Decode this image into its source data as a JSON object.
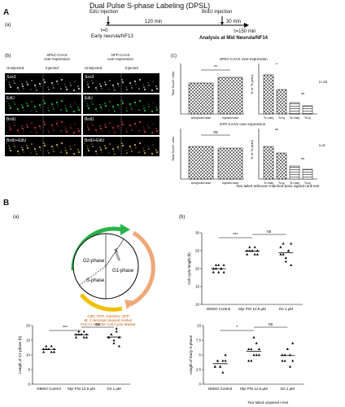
{
  "panel_A": {
    "letter": "A",
    "title": "Dual Pulse S-phase Labeling (DPSL)",
    "sub": "(a)",
    "edu": "EdU injection",
    "brdu": "BrdU injection",
    "t0": "t=0",
    "early": "Early neurula/NF13",
    "gap": "120 min",
    "d30": "30 min",
    "t150": "t=150 min",
    "analysis": "Analysis at Mid Neurula/NF14"
  },
  "panel_b": {
    "sub": "(b)",
    "left_header": "aPKC-CAAX\nover-expression",
    "right_header": "GFP-CAAX\nover-expression",
    "uninjected": "Uninjected",
    "injected": "Injected",
    "rows": [
      "Sox3",
      "EdU",
      "BrdU",
      "BrdU+EdU"
    ]
  },
  "panel_c": {
    "sub": "(c)",
    "top_title": "aPKC-CAAX over-expression",
    "bottom_title": "GFP-CAAX over-expression",
    "xcats": [
      "Uninjected side",
      "Injected side"
    ],
    "sig_ns": "ns",
    "sig_star": "**",
    "n_top": "n=15",
    "n_bottom": "n=6",
    "ylabel_left": "Total Sox3+ cells",
    "ylabel_right": "Tc or Ts (min)",
    "bar_cats": [
      "Tc Uninj",
      "Tc Inj",
      "Ts Uninj",
      "Ts Inj"
    ],
    "footer": "Two tailed Wilcoxon matched-pairs signed rank test"
  },
  "panel_B": {
    "letter": "B",
    "sub_a": "(a)",
    "sub_b": "(b)",
    "phases": [
      "G2-phase",
      "S-phase",
      "G1-phase",
      "Mitosis"
    ],
    "legend": "Cdt1: RFP, Geminin: GFP\nM: C-terminal cleaved marker\nFUCCI reporter Cell Cycle Marker",
    "groups": [
      "DMSO Control",
      "Myr PSI 12.5 μM",
      "Gö 1 μM"
    ],
    "ylab1": "Cell cycle length (h)",
    "ylab2": "Length of G1-phase (h)",
    "ylab3": "Length of Early S-phase",
    "sig": [
      "***",
      "ns",
      "***",
      "ns",
      "*",
      "ns"
    ],
    "footnote": "Two tailed unpaired t-test"
  },
  "chart_data": [
    {
      "type": "scatter",
      "title": "",
      "categories": [
        "DMSO Control",
        "Myr PSI 12.5 μM",
        "Gö 1 μM"
      ],
      "ylabel": "Cell cycle length (h)",
      "ylim": [
        10,
        30
      ],
      "series": [
        {
          "values": [
            19,
            20,
            21,
            20,
            19,
            20,
            21,
            19,
            20,
            21
          ]
        },
        {
          "values": [
            24,
            25,
            25,
            26,
            24,
            25,
            26,
            25,
            24,
            25
          ]
        },
        {
          "values": [
            24,
            27,
            22,
            25,
            21,
            26,
            24,
            23,
            25,
            27
          ]
        }
      ]
    },
    {
      "type": "scatter",
      "title": "",
      "categories": [
        "DMSO Control",
        "Myr PSI 12.5 μM",
        "Gö 1 μM"
      ],
      "ylabel": "Length of G1-phase (h)",
      "ylim": [
        0,
        20
      ],
      "series": [
        {
          "values": [
            11,
            12,
            12,
            13,
            11,
            12,
            13,
            12,
            11,
            12
          ]
        },
        {
          "values": [
            16,
            17,
            17,
            18,
            16,
            17,
            18,
            17,
            16,
            17
          ]
        },
        {
          "values": [
            16,
            17,
            14,
            18,
            13,
            16,
            17,
            15,
            19,
            16
          ]
        }
      ]
    },
    {
      "type": "scatter",
      "title": "",
      "categories": [
        "DMSO Control",
        "Myr PSI 12.5 μM",
        "Gö 1 μM"
      ],
      "ylabel": "Length of Early S-phase",
      "ylim": [
        0,
        10
      ],
      "series": [
        {
          "values": [
            3,
            4,
            3,
            4,
            5,
            3,
            4,
            3,
            2,
            4
          ]
        },
        {
          "values": [
            4,
            6,
            5,
            7,
            5,
            6,
            4,
            8,
            5,
            6
          ]
        },
        {
          "values": [
            4,
            5,
            6,
            3,
            7,
            5,
            4,
            6,
            5,
            4
          ]
        }
      ]
    }
  ]
}
